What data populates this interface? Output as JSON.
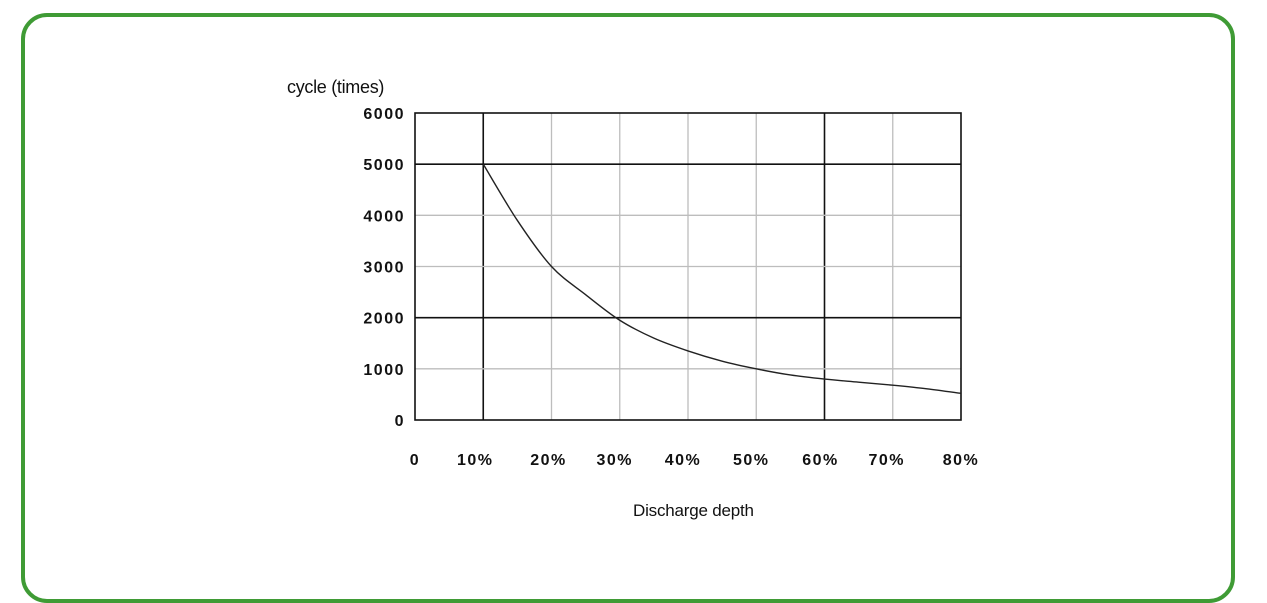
{
  "chart_data": {
    "type": "line",
    "ylabel": "cycle (times)",
    "xlabel": "Discharge depth",
    "x_ticks": [
      "0",
      "10%",
      "20%",
      "30%",
      "40%",
      "50%",
      "60%",
      "70%",
      "80%"
    ],
    "y_ticks": [
      "0",
      "1000",
      "2000",
      "3000",
      "4000",
      "5000",
      "6000"
    ],
    "xlim": [
      0,
      80
    ],
    "ylim": [
      0,
      6000
    ],
    "grid": true,
    "series": [
      {
        "x": [
          10,
          15,
          20,
          25,
          30,
          35,
          40,
          45,
          50,
          55,
          60,
          65,
          70,
          75,
          80
        ],
        "y": [
          5000,
          3900,
          3000,
          2450,
          1950,
          1600,
          1350,
          1150,
          1000,
          880,
          800,
          740,
          680,
          610,
          520
        ]
      }
    ],
    "colors": {
      "line": "#222222",
      "grid": "#bdbdbd",
      "grid_major": "#111111",
      "frame": "#3f9b35"
    }
  }
}
